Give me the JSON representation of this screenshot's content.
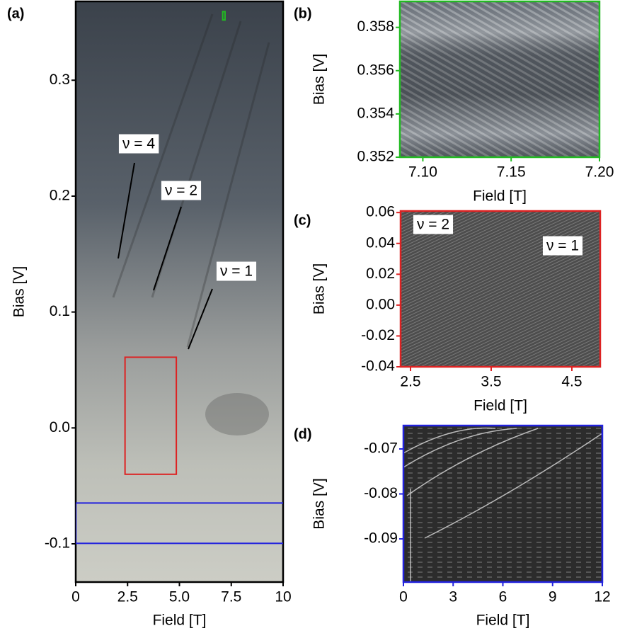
{
  "chart_data": [
    {
      "type": "image",
      "panel_label": "(a)",
      "xlabel": "Field [T]",
      "ylabel": "Bias [V]",
      "frame_color": "#000000",
      "xlim": [
        0,
        10
      ],
      "ylim": [
        -0.133,
        0.368
      ],
      "xticks": [
        0,
        2.5,
        {
          "value": 5,
          "label": "5.0"
        },
        7.5,
        10
      ],
      "yticks": [
        -0.1,
        {
          "value": 0,
          "label": "0.0"
        },
        0.1,
        0.2,
        0.3
      ],
      "annotations": [
        "ν = 4",
        "ν = 2",
        "ν = 1"
      ]
    },
    {
      "type": "image",
      "panel_label": "(b)",
      "xlabel": "Field [T]",
      "ylabel": "Bias [V]",
      "frame_color": "#22bb22",
      "xlim": [
        7.087,
        7.2
      ],
      "ylim": [
        0.352,
        0.3592
      ],
      "xticks": [
        {
          "value": 7.1,
          "label": "7.10"
        },
        7.15,
        {
          "value": 7.2,
          "label": "7.20"
        }
      ],
      "yticks": [
        0.352,
        0.354,
        0.356,
        0.358
      ],
      "annotations": []
    },
    {
      "type": "image",
      "panel_label": "(c)",
      "xlabel": "Field [T]",
      "ylabel": "Bias [V]",
      "frame_color": "#dd2222",
      "xlim": [
        2.377,
        4.851
      ],
      "ylim": [
        -0.04,
        0.061
      ],
      "xticks": [
        2.5,
        3.5,
        4.5
      ],
      "yticks": [
        -0.04,
        -0.02,
        {
          "value": 0,
          "label": "0.00"
        },
        0.02,
        0.04,
        0.06
      ],
      "annotations": [
        "ν = 2",
        "ν = 1"
      ]
    },
    {
      "type": "image",
      "panel_label": "(d)",
      "xlabel": "Field [T]",
      "ylabel": "Bias [V]",
      "frame_color": "#2222dd",
      "xlim": [
        0,
        12
      ],
      "ylim": [
        -0.0996,
        -0.0648
      ],
      "xticks": [
        0,
        3,
        6,
        9,
        12
      ],
      "yticks": [
        -0.09,
        -0.08,
        -0.07
      ],
      "annotations": []
    }
  ]
}
